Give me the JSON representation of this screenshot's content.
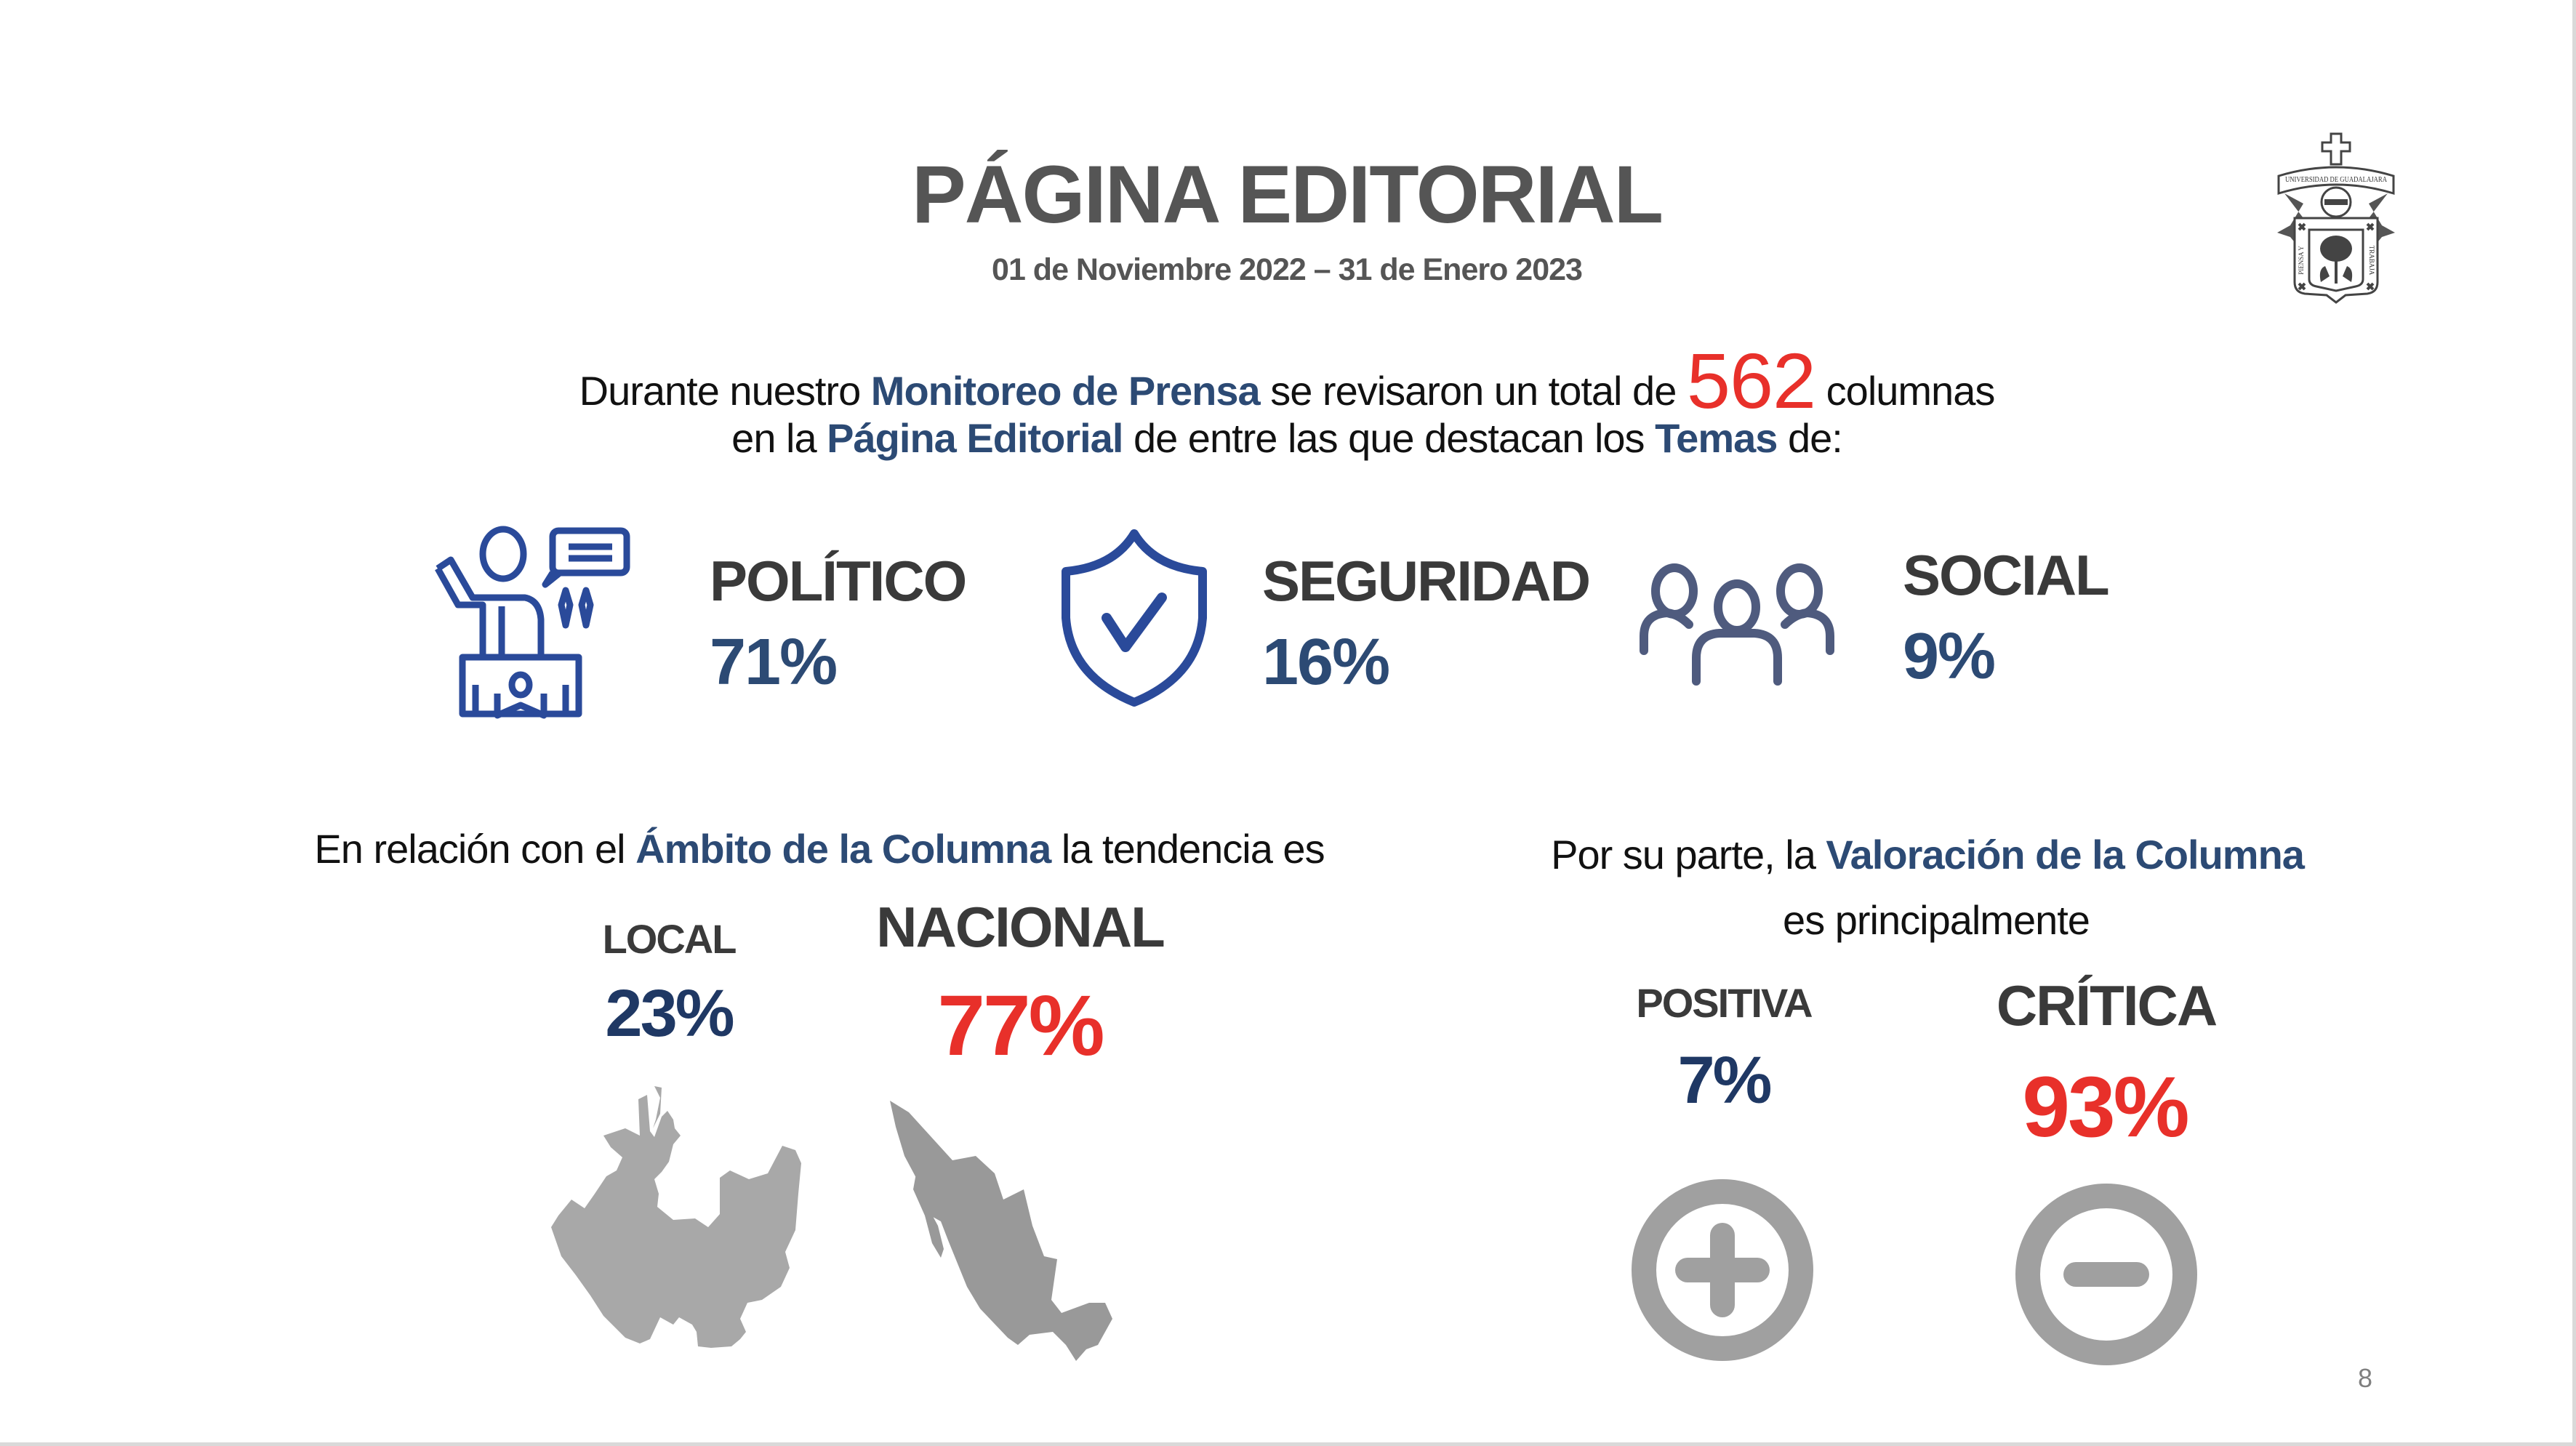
{
  "header": {
    "title": "PÁGINA EDITORIAL",
    "date_range": "01 de Noviembre 2022 – 31 de Enero 2023",
    "logo": {
      "icon": "university-crest-icon",
      "banner_text": "UNIVERSIDAD DE GUADALAJARA",
      "motto_left": "PIENSA Y",
      "motto_right": "TRABAJA"
    }
  },
  "intro": {
    "line1_a": "Durante nuestro",
    "line1_highlight": "Monitoreo de Prensa",
    "line1_b": "se revisaron un total de",
    "total_columns": "562",
    "line1_c": "columnas",
    "line2_a": "en la",
    "line2_highlight1": "Página Editorial",
    "line2_b": "de entre las que destacan los",
    "line2_highlight2": "Temas",
    "line2_c": "de:"
  },
  "themes": [
    {
      "label": "POLÍTICO",
      "percent": "71%",
      "icon": "politician-podium-icon"
    },
    {
      "label": "SEGURIDAD",
      "percent": "16%",
      "icon": "shield-check-icon"
    },
    {
      "label": "SOCIAL",
      "percent": "9%",
      "icon": "people-group-icon"
    }
  ],
  "scope": {
    "text_a": "En relación con el",
    "text_highlight": "Ámbito de la Columna",
    "text_b": "la tendencia es",
    "local": {
      "label": "LOCAL",
      "percent": "23%",
      "icon": "jalisco-map-icon"
    },
    "national": {
      "label": "NACIONAL",
      "percent": "77%",
      "icon": "mexico-map-icon"
    }
  },
  "valuation": {
    "text_a": "Por su parte, la",
    "text_highlight": "Valoración de la Columna",
    "text_b": "es principalmente",
    "positive": {
      "label": "POSITIVA",
      "percent": "7%",
      "icon": "plus-circle-icon"
    },
    "critical": {
      "label": "CRÍTICA",
      "percent": "93%",
      "icon": "minus-circle-icon"
    }
  },
  "footer": {
    "page_number": "8"
  },
  "colors": {
    "navy": "#2c4a74",
    "dark_navy": "#1f3864",
    "accent_red": "#e8302a",
    "icon_blue": "#2a4a9a",
    "icon_slate": "#4f5b7e",
    "map_gray": "#a8a8a8",
    "map_dark_gray": "#999999",
    "symbol_gray": "#a0a0a0",
    "title_gray": "#555555"
  }
}
